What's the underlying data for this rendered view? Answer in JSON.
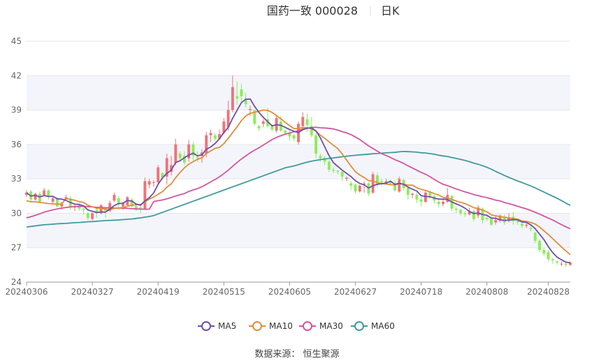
{
  "title": "国药一致 000028",
  "period": "日K",
  "source": "数据来源： 恒生聚源",
  "colors": {
    "up": "#f0727a",
    "down": "#89ee59",
    "MA5": "#6e4fa6",
    "MA10": "#e08d3c",
    "MA30": "#d3559f",
    "MA60": "#3f9a9e",
    "grid": "#e6e6e6",
    "band": "#f4f5fb"
  },
  "chart_data": {
    "type": "candlestick",
    "ylim": [
      24,
      45
    ],
    "yticks": [
      24,
      27,
      30,
      33,
      36,
      39,
      42,
      45
    ],
    "xticks": [
      {
        "label": "20240306",
        "index": 0
      },
      {
        "label": "20240327",
        "index": 15
      },
      {
        "label": "20240419",
        "index": 30
      },
      {
        "label": "20240515",
        "index": 45
      },
      {
        "label": "20240605",
        "index": 60
      },
      {
        "label": "20240627",
        "index": 75
      },
      {
        "label": "20240718",
        "index": 90
      },
      {
        "label": "20240808",
        "index": 105
      },
      {
        "label": "20240828",
        "index": 119
      }
    ],
    "legend": [
      "MA5",
      "MA10",
      "MA30",
      "MA60"
    ],
    "ohlc": [
      [
        31.6,
        31.8,
        31.4,
        32.0
      ],
      [
        31.9,
        31.2,
        31.0,
        32.0
      ],
      [
        31.2,
        31.7,
        31.1,
        31.8
      ],
      [
        31.7,
        31.0,
        30.9,
        31.9
      ],
      [
        31.6,
        32.0,
        31.5,
        32.2
      ],
      [
        32.0,
        31.4,
        31.2,
        32.1
      ],
      [
        31.0,
        31.3,
        30.8,
        31.5
      ],
      [
        31.3,
        30.6,
        30.5,
        31.4
      ],
      [
        30.6,
        30.9,
        30.3,
        31.0
      ],
      [
        31.2,
        31.4,
        31.1,
        31.6
      ],
      [
        31.3,
        30.5,
        30.3,
        31.5
      ],
      [
        30.5,
        30.6,
        30.2,
        30.8
      ],
      [
        30.7,
        30.4,
        30.2,
        30.9
      ],
      [
        30.4,
        30.3,
        29.9,
        30.5
      ],
      [
        30.0,
        29.6,
        29.4,
        30.1
      ],
      [
        29.5,
        30.0,
        29.4,
        30.1
      ],
      [
        30.3,
        30.0,
        29.6,
        30.5
      ],
      [
        30.0,
        30.7,
        29.9,
        30.8
      ],
      [
        30.4,
        30.2,
        29.6,
        30.5
      ],
      [
        30.2,
        30.9,
        30.1,
        31.1
      ],
      [
        31.1,
        31.6,
        31.0,
        31.8
      ],
      [
        31.3,
        30.8,
        30.3,
        31.5
      ],
      [
        30.6,
        30.9,
        30.3,
        31.0
      ],
      [
        30.7,
        31.4,
        30.7,
        31.5
      ],
      [
        31.2,
        30.6,
        30.5,
        31.3
      ],
      [
        30.6,
        30.3,
        30.2,
        30.7
      ],
      [
        30.5,
        30.3,
        30.0,
        30.7
      ],
      [
        30.4,
        32.8,
        30.3,
        33.1
      ],
      [
        32.5,
        32.8,
        32.2,
        33.0
      ],
      [
        32.7,
        32.7,
        32.3,
        32.9
      ],
      [
        32.7,
        34.0,
        32.5,
        34.2
      ],
      [
        33.5,
        33.1,
        32.9,
        33.6
      ],
      [
        33.2,
        34.8,
        32.5,
        35.2
      ],
      [
        33.6,
        34.2,
        33.3,
        35.0
      ],
      [
        34.4,
        36.0,
        34.2,
        36.5
      ],
      [
        35.2,
        34.8,
        34.5,
        35.4
      ],
      [
        35.0,
        34.4,
        34.2,
        35.4
      ],
      [
        34.8,
        36.0,
        34.5,
        36.4
      ],
      [
        36.0,
        35.0,
        34.6,
        36.2
      ],
      [
        34.9,
        34.8,
        34.5,
        35.4
      ],
      [
        35.0,
        35.3,
        34.4,
        35.6
      ],
      [
        35.2,
        36.8,
        34.9,
        37.1
      ],
      [
        36.8,
        37.0,
        36.2,
        37.3
      ],
      [
        36.8,
        36.5,
        36.3,
        37.0
      ],
      [
        36.5,
        36.9,
        36.4,
        37.3
      ],
      [
        37.0,
        38.0,
        36.9,
        38.3
      ],
      [
        37.5,
        39.0,
        37.2,
        39.8
      ],
      [
        39.0,
        41.0,
        38.8,
        42.0
      ],
      [
        40.2,
        40.0,
        39.5,
        41.5
      ],
      [
        40.8,
        40.2,
        39.6,
        41.3
      ],
      [
        40.0,
        39.5,
        39.2,
        40.5
      ],
      [
        39.0,
        39.1,
        38.5,
        39.4
      ],
      [
        39.0,
        37.8,
        37.6,
        39.0
      ],
      [
        37.6,
        37.4,
        37.2,
        37.7
      ],
      [
        37.8,
        38.0,
        37.5,
        38.2
      ],
      [
        38.2,
        37.6,
        37.5,
        39.2
      ],
      [
        37.6,
        37.3,
        37.1,
        37.7
      ],
      [
        37.2,
        38.3,
        37.0,
        38.6
      ],
      [
        38.0,
        37.2,
        37.1,
        38.5
      ],
      [
        37.2,
        37.0,
        36.9,
        37.3
      ],
      [
        37.0,
        36.7,
        36.3,
        37.2
      ],
      [
        36.8,
        36.5,
        36.3,
        36.9
      ],
      [
        36.2,
        37.8,
        36.0,
        38.0
      ],
      [
        37.6,
        38.4,
        37.3,
        38.8
      ],
      [
        38.2,
        37.7,
        37.1,
        38.7
      ],
      [
        37.6,
        36.8,
        36.6,
        38.4
      ],
      [
        36.8,
        35.2,
        34.8,
        37.0
      ],
      [
        35.0,
        34.8,
        34.5,
        35.2
      ],
      [
        34.8,
        34.5,
        34.2,
        35.0
      ],
      [
        34.5,
        33.8,
        33.6,
        34.6
      ],
      [
        33.8,
        33.7,
        33.5,
        34.0
      ],
      [
        33.7,
        33.6,
        33.4,
        33.8
      ],
      [
        33.6,
        33.2,
        32.8,
        33.7
      ],
      [
        33.0,
        33.1,
        32.8,
        33.2
      ],
      [
        32.6,
        32.4,
        32.0,
        32.8
      ],
      [
        32.5,
        31.9,
        31.7,
        32.6
      ],
      [
        31.9,
        32.4,
        31.8,
        32.5
      ],
      [
        32.5,
        32.6,
        31.8,
        32.8
      ],
      [
        32.6,
        31.7,
        31.5,
        32.7
      ],
      [
        31.8,
        33.4,
        31.7,
        33.6
      ],
      [
        33.3,
        32.5,
        32.2,
        33.5
      ],
      [
        32.8,
        32.7,
        32.4,
        33.0
      ],
      [
        32.6,
        32.8,
        32.5,
        33.0
      ],
      [
        32.8,
        32.6,
        32.4,
        32.9
      ],
      [
        32.6,
        32.0,
        31.9,
        32.9
      ],
      [
        31.9,
        33.0,
        31.8,
        33.2
      ],
      [
        32.9,
        32.2,
        32.0,
        33.0
      ],
      [
        32.2,
        31.6,
        31.2,
        32.4
      ],
      [
        31.6,
        31.7,
        31.3,
        31.8
      ],
      [
        31.6,
        31.2,
        30.9,
        31.8
      ],
      [
        31.2,
        31.0,
        30.6,
        31.6
      ],
      [
        31.0,
        31.8,
        30.9,
        32.0
      ],
      [
        31.8,
        31.5,
        31.3,
        31.9
      ],
      [
        31.5,
        31.1,
        30.8,
        31.6
      ],
      [
        31.0,
        30.8,
        30.5,
        31.2
      ],
      [
        30.8,
        31.0,
        30.6,
        31.2
      ],
      [
        31.0,
        31.6,
        30.9,
        32.2
      ],
      [
        31.5,
        30.4,
        30.2,
        31.6
      ],
      [
        30.4,
        30.3,
        30.0,
        30.6
      ],
      [
        30.3,
        30.0,
        29.8,
        30.4
      ],
      [
        30.0,
        29.9,
        29.7,
        30.2
      ],
      [
        29.9,
        30.2,
        29.8,
        30.5
      ],
      [
        30.2,
        29.5,
        29.3,
        30.3
      ],
      [
        29.8,
        30.5,
        29.6,
        30.7
      ],
      [
        30.4,
        29.4,
        29.1,
        30.5
      ],
      [
        29.6,
        29.5,
        29.3,
        29.9
      ],
      [
        29.5,
        29.0,
        28.9,
        29.7
      ],
      [
        29.2,
        29.4,
        29.0,
        29.7
      ],
      [
        29.4,
        29.8,
        29.2,
        29.9
      ],
      [
        29.7,
        29.2,
        29.0,
        29.9
      ],
      [
        29.4,
        29.6,
        29.2,
        30.0
      ],
      [
        29.7,
        29.3,
        29.0,
        30.1
      ],
      [
        29.3,
        29.2,
        29.0,
        29.5
      ],
      [
        29.1,
        28.9,
        28.7,
        29.2
      ],
      [
        28.9,
        29.0,
        28.7,
        29.1
      ],
      [
        28.7,
        28.6,
        28.4,
        28.9
      ],
      [
        28.3,
        27.6,
        27.4,
        28.4
      ],
      [
        27.6,
        26.8,
        26.6,
        27.7
      ],
      [
        26.8,
        26.5,
        26.3,
        27.0
      ],
      [
        26.6,
        26.0,
        25.8,
        26.8
      ],
      [
        26.0,
        25.9,
        25.6,
        26.1
      ],
      [
        25.8,
        25.7,
        25.5,
        25.9
      ],
      [
        25.6,
        25.6,
        25.4,
        25.8
      ],
      [
        25.6,
        25.5,
        25.3,
        25.7
      ],
      [
        25.5,
        25.7,
        25.4,
        25.8
      ]
    ],
    "ma60_early": [
      28.8,
      28.85,
      28.9,
      28.95,
      29.0,
      29.02,
      29.05,
      29.08,
      29.1,
      29.12,
      29.15,
      29.18,
      29.2,
      29.23,
      29.26,
      29.28,
      29.3,
      29.33,
      29.36,
      29.38,
      29.4,
      29.42,
      29.45,
      29.48,
      29.5,
      29.55,
      29.6,
      29.66,
      29.72,
      29.8
    ],
    "ma30_early": [
      29.6,
      29.7,
      29.82,
      29.95,
      30.1,
      30.2,
      30.3,
      30.38,
      30.45,
      30.5,
      30.55,
      30.58,
      30.6,
      30.6,
      30.58,
      30.55,
      30.52,
      30.5,
      30.48,
      30.48,
      30.46,
      30.45,
      30.44,
      30.43,
      30.4,
      30.38,
      30.36,
      30.35,
      30.36,
      30.4
    ],
    "ma10_early": [
      31.1,
      31.0,
      31.0,
      30.95,
      30.9,
      30.85,
      30.82,
      30.8,
      30.78,
      30.76
    ]
  }
}
